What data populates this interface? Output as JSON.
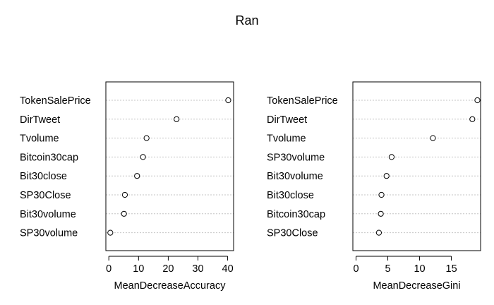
{
  "title": "Ran",
  "chart_data": [
    {
      "type": "scatter",
      "variant": "dotchart",
      "xlabel": "MeanDecreaseAccuracy",
      "xlim": [
        -1,
        42
      ],
      "xticks": [
        0,
        10,
        20,
        30,
        40
      ],
      "grid": "dotted horizontal",
      "categories": [
        "TokenSalePrice",
        "DirTweet",
        "Tvolume",
        "Bitcoin30cap",
        "Bit30close",
        "SP30Close",
        "Bit30volume",
        "SP30volume"
      ],
      "values": [
        40.2,
        22.8,
        12.7,
        11.5,
        9.5,
        5.4,
        5.1,
        0.5
      ]
    },
    {
      "type": "scatter",
      "variant": "dotchart",
      "xlabel": "MeanDecreaseGini",
      "xlim": [
        -0.5,
        19.6
      ],
      "xticks": [
        0,
        5,
        10,
        15
      ],
      "grid": "dotted horizontal",
      "categories": [
        "TokenSalePrice",
        "DirTweet",
        "Tvolume",
        "SP30volume",
        "Bit30volume",
        "Bit30close",
        "Bitcoin30cap",
        "SP30Close"
      ],
      "values": [
        19.1,
        18.3,
        12.1,
        5.6,
        4.8,
        4.0,
        3.9,
        3.6
      ]
    }
  ]
}
